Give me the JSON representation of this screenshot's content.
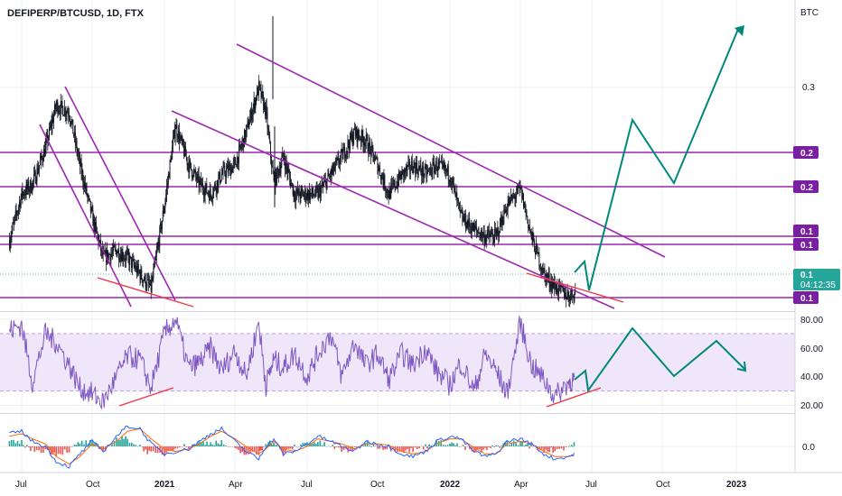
{
  "header": {
    "symbol_label": "DEFIPERP/BTCUSD, 1D, FTX",
    "currency_label": "BTC"
  },
  "price_axis": {
    "ticks": [
      "0.3"
    ],
    "level_badges": [
      "0.2",
      "0.2",
      "0.1",
      "0.1",
      "0.1"
    ],
    "last_price": {
      "value": "0.1",
      "countdown": "04:12:35"
    }
  },
  "rsi_axis": {
    "ticks": [
      "80.00",
      "60.00",
      "40.00",
      "20.00"
    ]
  },
  "macd_axis": {
    "ticks": [
      "0.0"
    ]
  },
  "time_axis": {
    "ticks": [
      "Jul",
      "Oct",
      "2021",
      "Apr",
      "Jul",
      "Oct",
      "2022",
      "Apr",
      "Jul",
      "Oct",
      "2023"
    ]
  },
  "colors": {
    "up": "#26a69a",
    "down": "#ef5350",
    "candle_body": "#131722",
    "trendline": "#9c27b0",
    "divergence": "#f23645",
    "projection": "#00897b",
    "rsi_line": "#7e57c2",
    "rsi_band": "#f0e6fa",
    "macd_line": "#2962ff",
    "signal_line": "#ff6d00",
    "grid": "#e0e3eb"
  },
  "chart_data": [
    {
      "type": "candlestick",
      "title": "DEFIPERP/BTCUSD, 1D, FTX",
      "ylabel": "BTC",
      "y_scale": "log",
      "x_ticks": [
        "Jul",
        "Oct",
        "2021",
        "Apr",
        "Jul",
        "Oct",
        "2022",
        "Apr",
        "Jul",
        "Oct",
        "2023"
      ],
      "y_ticks": [
        "0.3"
      ],
      "horizontal_levels": [
        0.2,
        0.2,
        0.1,
        0.1,
        0.1
      ],
      "last_price": 0.1,
      "close_series": {
        "x": [
          "2020-06-15",
          "2020-07-01",
          "2020-07-15",
          "2020-08-01",
          "2020-08-15",
          "2020-09-01",
          "2020-09-15",
          "2020-10-01",
          "2020-10-15",
          "2020-11-01",
          "2020-11-15",
          "2020-12-01",
          "2020-12-15",
          "2021-01-01",
          "2021-01-15",
          "2021-02-01",
          "2021-02-15",
          "2021-03-01",
          "2021-03-15",
          "2021-04-01",
          "2021-04-15",
          "2021-05-01",
          "2021-05-10",
          "2021-05-20",
          "2021-06-01",
          "2021-06-15",
          "2021-07-01",
          "2021-07-15",
          "2021-08-01",
          "2021-08-15",
          "2021-09-01",
          "2021-09-15",
          "2021-10-01",
          "2021-10-15",
          "2021-11-01",
          "2021-11-15",
          "2021-12-01",
          "2021-12-15",
          "2022-01-01",
          "2022-01-15",
          "2022-02-01",
          "2022-02-15",
          "2022-03-01",
          "2022-03-15",
          "2022-04-01",
          "2022-04-15",
          "2022-05-01",
          "2022-05-15",
          "2022-06-01",
          "2022-06-10"
        ],
        "values": [
          0.122,
          0.16,
          0.17,
          0.21,
          0.27,
          0.26,
          0.19,
          0.14,
          0.11,
          0.115,
          0.11,
          0.1,
          0.092,
          0.15,
          0.24,
          0.19,
          0.17,
          0.16,
          0.18,
          0.19,
          0.23,
          0.3,
          0.26,
          0.17,
          0.2,
          0.16,
          0.16,
          0.16,
          0.18,
          0.2,
          0.23,
          0.22,
          0.19,
          0.16,
          0.18,
          0.19,
          0.18,
          0.19,
          0.18,
          0.14,
          0.13,
          0.125,
          0.125,
          0.15,
          0.165,
          0.125,
          0.1,
          0.093,
          0.088,
          0.09
        ]
      }
    },
    {
      "type": "line",
      "title": "",
      "y_ticks": [
        "80.00",
        "60.00",
        "40.00",
        "20.00"
      ],
      "band": [
        30,
        70
      ],
      "series": [
        {
          "values": [
            72,
            76,
            36,
            70,
            64,
            48,
            32,
            28,
            22,
            40,
            54,
            52,
            32,
            70,
            80,
            46,
            50,
            60,
            44,
            58,
            40,
            78,
            34,
            52,
            46,
            56,
            40,
            56,
            70,
            40,
            64,
            48,
            56,
            38,
            56,
            48,
            60,
            44,
            34,
            50,
            30,
            56,
            44,
            28,
            78,
            48,
            38,
            26,
            36,
            38
          ]
        }
      ]
    },
    {
      "type": "line",
      "title": "",
      "y_ticks": [
        "0.0"
      ],
      "series": [
        {
          "values": [
            0.01,
            0.012,
            0.004,
            0.0,
            -0.012,
            -0.016,
            -0.006,
            0.004,
            -0.004,
            0.008,
            0.016,
            0.014,
            0.002,
            -0.006,
            -0.004,
            -0.002,
            0.004,
            0.01,
            0.014,
            0.004,
            -0.004,
            -0.01,
            0.0,
            0.006,
            -0.006,
            -0.004,
            0.002,
            0.008,
            0.004,
            0.0,
            -0.004,
            0.004,
            0.002,
            0.0,
            -0.006,
            -0.008,
            -0.004,
            0.004,
            0.008,
            0.006,
            -0.004,
            -0.008,
            -0.006,
            0.004,
            0.006,
            0.002,
            -0.006,
            -0.01,
            -0.008,
            -0.006
          ]
        },
        {
          "values": [
            0.008,
            0.01,
            0.006,
            0.002,
            -0.008,
            -0.014,
            -0.008,
            0.002,
            -0.002,
            0.004,
            0.012,
            0.014,
            0.006,
            -0.002,
            -0.004,
            -0.002,
            0.002,
            0.008,
            0.012,
            0.006,
            0.0,
            -0.006,
            -0.002,
            0.004,
            -0.002,
            -0.004,
            0.0,
            0.006,
            0.004,
            0.002,
            -0.002,
            0.002,
            0.002,
            0.001,
            -0.004,
            -0.006,
            -0.004,
            0.002,
            0.006,
            0.006,
            -0.001,
            -0.006,
            -0.006,
            0.002,
            0.004,
            0.002,
            -0.004,
            -0.008,
            -0.008,
            -0.007
          ]
        }
      ]
    }
  ]
}
